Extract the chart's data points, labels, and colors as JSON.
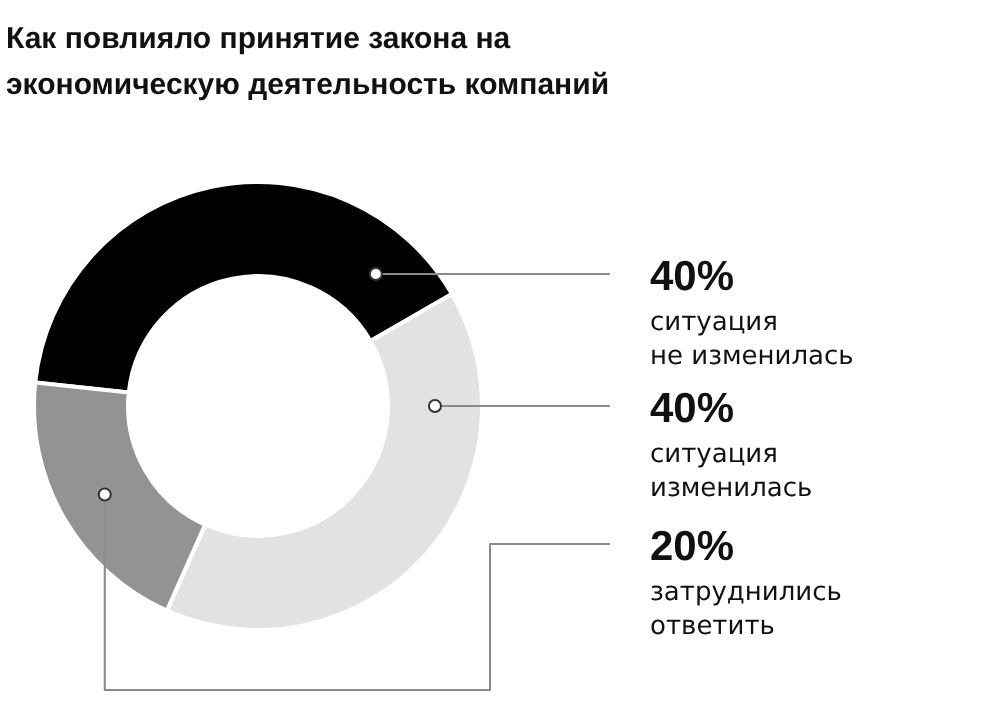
{
  "chart_data": {
    "type": "donut",
    "title": "Как повлияло принятие закона на экономическую деятельность компаний",
    "categories": [
      "ситуация не изменилась",
      "ситуация изменилась",
      "затруднились ответить"
    ],
    "values": [
      40,
      40,
      20
    ],
    "colors": [
      "#000000",
      "#e2e2e2",
      "#939393"
    ],
    "value_labels": [
      "40%",
      "40%",
      "20%"
    ],
    "legend": false
  }
}
